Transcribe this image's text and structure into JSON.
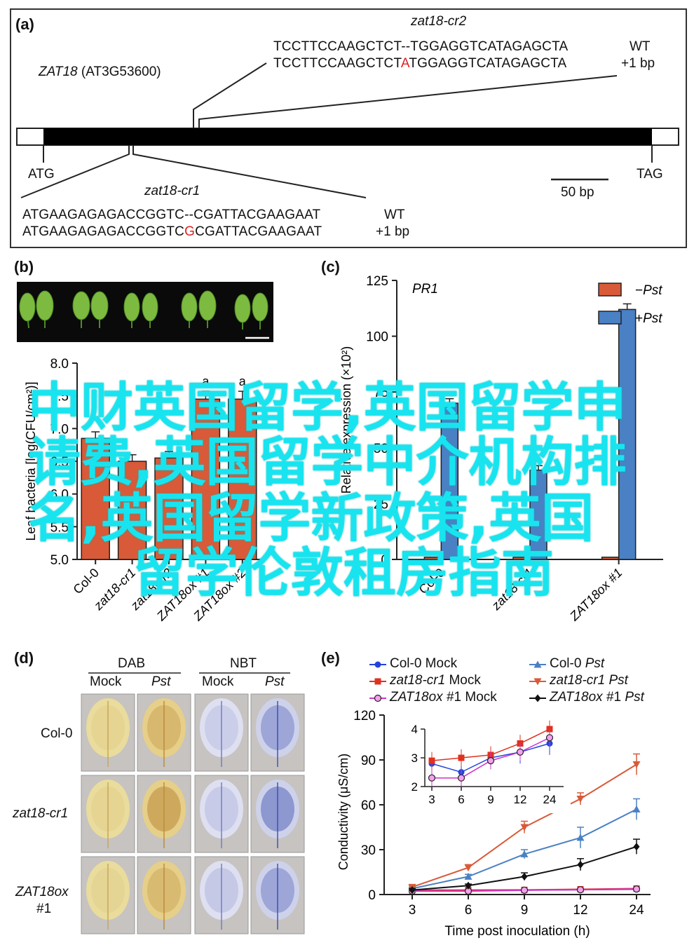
{
  "panel_a": {
    "tag": "(a)",
    "gene_name": "ZAT18",
    "gene_locus": "(AT3G53600)",
    "start_codon": "ATG",
    "stop_codon": "TAG",
    "scale_label": "50 bp",
    "cr2": {
      "title": "zat18-cr2",
      "wt_seq": "TCCTTCCAAGCTCT--TGGAGGTCATAGAGCTA",
      "wt_label": "WT",
      "mut_seq_pre": "TCCTTCCAAGCTCT",
      "mut_insert": "A",
      "mut_seq_post": "TGGAGGTCATAGAGCTA",
      "mut_label": "+1 bp"
    },
    "cr1": {
      "title": "zat18-cr1",
      "wt_seq": "ATGAAGAGAGACCGGTC--CGATTACGAAGAAT",
      "wt_label": "WT",
      "mut_seq_pre": "ATGAAGAGAGACCGGTC",
      "mut_insert": "G",
      "mut_seq_post": "CGATTACGAAGAAT",
      "mut_label": "+1 bp"
    }
  },
  "panel_b": {
    "tag": "(b)",
    "chart_data": {
      "type": "bar",
      "ylabel": "Leaf bacteria [log(CFU/cm²)]",
      "ylim": [
        5.0,
        8.0
      ],
      "yticks": [
        "5.0",
        "5.5",
        "6.0",
        "6.5",
        "7.0",
        "7.5",
        "8.0"
      ],
      "categories": [
        "Col-0",
        "zat18-cr1",
        "zat18-cr2",
        "ZAT18ox #1",
        "ZAT18ox #2"
      ],
      "values": [
        6.85,
        6.5,
        6.55,
        7.45,
        7.45
      ],
      "errors": [
        0.1,
        0.1,
        0.1,
        0.12,
        0.12
      ],
      "letters": [
        "",
        "",
        "",
        "a",
        "a"
      ],
      "bar_color": "#d85a38"
    }
  },
  "panel_c": {
    "tag": "(c)",
    "chart_data": {
      "type": "bar",
      "title": "PR1",
      "ylabel": "Relative expression (×10²)",
      "ylim": [
        0,
        125
      ],
      "yticks": [
        "0",
        "25",
        "50",
        "75",
        "100",
        "125"
      ],
      "categories": [
        "Col-0",
        "zat18-cr1",
        "ZAT18ox #1"
      ],
      "series": [
        {
          "name": "−Pst",
          "color": "#d85a38",
          "values": [
            1,
            1,
            1
          ]
        },
        {
          "name": "+Pst",
          "color": "#4a80c4",
          "values": [
            70,
            40,
            112
          ]
        }
      ],
      "errors": [
        2,
        2,
        2.5
      ],
      "legend": "top-right"
    }
  },
  "panel_d": {
    "tag": "(d)",
    "stains": [
      "DAB",
      "NBT"
    ],
    "conditions": [
      "Mock",
      "Pst",
      "Mock",
      "Pst"
    ],
    "rows": [
      "Col-0",
      "zat18-cr1",
      "ZAT18ox",
      "#1"
    ]
  },
  "panel_e": {
    "tag": "(e)",
    "chart_data": {
      "type": "line",
      "xlabel": "Time post inoculation (h)",
      "ylabel": "Conductivity (μS/cm)",
      "x": [
        3,
        6,
        9,
        12,
        24
      ],
      "xticks": [
        "3",
        "6",
        "9",
        "12",
        "24"
      ],
      "ylim": [
        0,
        120
      ],
      "yticks": [
        "0",
        "30",
        "60",
        "90",
        "120"
      ],
      "series": [
        {
          "name": "Col-0 Mock",
          "label_main": "Col-0",
          "label_rest": " Mock",
          "color": "#2244dd",
          "marker": "circle",
          "values": [
            2.8,
            2.5,
            3.0,
            3.2,
            3.5
          ],
          "errors": [
            0.4,
            0.4,
            0.4,
            0.4,
            0.4
          ]
        },
        {
          "name": "zat18-cr1 Mock",
          "label_main": "zat18-cr1",
          "label_rest": " Mock",
          "color": "#e03020",
          "marker": "square",
          "values": [
            2.9,
            3.0,
            3.1,
            3.5,
            4.0
          ],
          "errors": [
            0.3,
            0.3,
            0.3,
            0.3,
            0.3
          ]
        },
        {
          "name": "ZAT18ox #1 Mock",
          "label_main": "ZAT18ox",
          "label_rest": " #1 Mock",
          "color": "#cc33cc",
          "marker": "circle-open",
          "values": [
            2.3,
            2.3,
            2.9,
            3.2,
            3.7
          ],
          "errors": [
            0.3,
            0.3,
            0.3,
            0.3,
            0.3
          ]
        },
        {
          "name": "Col-0 Pst",
          "label_main": "Col-0",
          "label_rest": " Pst",
          "color": "#4a80c4",
          "marker": "triangle",
          "values": [
            4.0,
            12.0,
            27.0,
            38.0,
            57.0
          ],
          "errors": [
            1,
            1.5,
            3,
            7,
            7
          ]
        },
        {
          "name": "zat18-cr1 Pst",
          "label_main": "zat18-cr1",
          "label_rest": " Pst",
          "color": "#d85a38",
          "marker": "triangle-down",
          "values": [
            5.0,
            18.0,
            45.0,
            64.0,
            87.0
          ],
          "errors": [
            1,
            2,
            4,
            4,
            7
          ]
        },
        {
          "name": "ZAT18ox #1 Pst",
          "label_main": "ZAT18ox",
          "label_rest": " #1 Pst",
          "color": "#111111",
          "marker": "diamond",
          "values": [
            3.0,
            6.0,
            12.0,
            20.0,
            32.0
          ],
          "errors": [
            1,
            1,
            2.5,
            4,
            5
          ]
        }
      ],
      "inset": {
        "ylim": [
          2,
          4
        ],
        "yticks": [
          "2",
          "3",
          "4"
        ],
        "xticks": [
          "3",
          "6",
          "9",
          "12",
          "24"
        ]
      }
    }
  },
  "watermark": {
    "line1": "中财英国留学,英国留学申",
    "line2": "请费,英国留学中介机构排",
    "line3": "名,英国留学新政策,英国",
    "line4": "留学伦敦租房指南"
  }
}
